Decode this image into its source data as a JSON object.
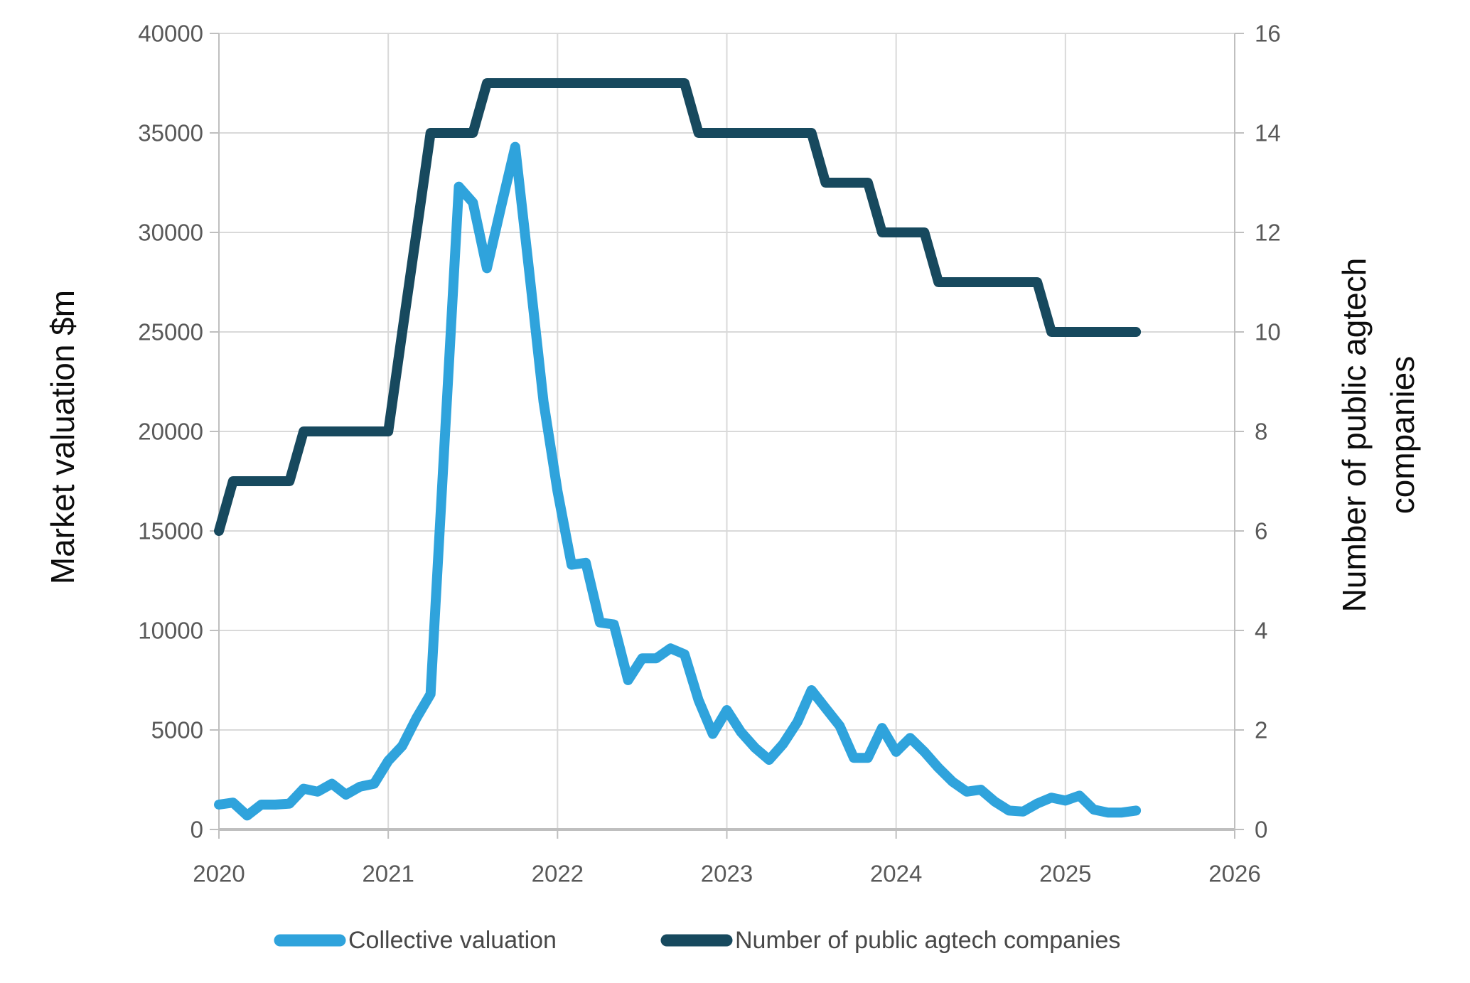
{
  "page": {
    "background": "#ffffff",
    "grid_color": "#d9d9d9",
    "axis_color": "#bfbfbf",
    "tick_label_color": "#595959"
  },
  "chart_data": {
    "type": "line",
    "title": "",
    "grid": "on",
    "x_axis": {
      "ticks": [
        2020,
        2021,
        2022,
        2023,
        2024,
        2025,
        2026
      ],
      "range": [
        2020,
        2026
      ]
    },
    "y_left": {
      "label": "Market valuation $m",
      "ticks": [
        0,
        5000,
        10000,
        15000,
        20000,
        25000,
        30000,
        35000,
        40000
      ],
      "range": [
        0,
        40000
      ]
    },
    "y_right": {
      "label": "Number of public agtech companies",
      "label_lines": [
        "Number of public agtech",
        "companies"
      ],
      "ticks": [
        0,
        2,
        4,
        6,
        8,
        10,
        12,
        14,
        16
      ],
      "range": [
        0,
        16
      ]
    },
    "x_monthly": [
      2020.0,
      2020.083,
      2020.167,
      2020.25,
      2020.333,
      2020.417,
      2020.5,
      2020.583,
      2020.667,
      2020.75,
      2020.833,
      2020.917,
      2021.0,
      2021.083,
      2021.167,
      2021.25,
      2021.333,
      2021.417,
      2021.5,
      2021.583,
      2021.667,
      2021.75,
      2021.833,
      2021.917,
      2022.0,
      2022.083,
      2022.167,
      2022.25,
      2022.333,
      2022.417,
      2022.5,
      2022.583,
      2022.667,
      2022.75,
      2022.833,
      2022.917,
      2023.0,
      2023.083,
      2023.167,
      2023.25,
      2023.333,
      2023.417,
      2023.5,
      2023.583,
      2023.667,
      2023.75,
      2023.833,
      2023.917,
      2024.0,
      2024.083,
      2024.167,
      2024.25,
      2024.333,
      2024.417,
      2024.5,
      2024.583,
      2024.667,
      2024.75,
      2024.833,
      2024.917,
      2025.0,
      2025.083,
      2025.167,
      2025.25,
      2025.333,
      2025.417
    ],
    "series": [
      {
        "name": "Collective valuation",
        "axis": "left",
        "color": "#2fa3dc",
        "stroke_width": 14,
        "values": [
          1250,
          1350,
          700,
          1250,
          1250,
          1300,
          2050,
          1900,
          2300,
          1750,
          2150,
          2300,
          3450,
          4200,
          5600,
          6800,
          19500,
          32300,
          31500,
          28200,
          31300,
          34300,
          28000,
          21500,
          17000,
          13300,
          13400,
          10400,
          10300,
          7500,
          8600,
          8600,
          9100,
          8800,
          6500,
          4800,
          6000,
          4900,
          4100,
          3500,
          4300,
          5400,
          7000,
          6100,
          5200,
          3600,
          3600,
          5100,
          3900,
          4600,
          3900,
          3100,
          2400,
          1900,
          2000,
          1400,
          950,
          900,
          1300,
          1600,
          1450,
          1700,
          1000,
          850,
          850,
          950
        ]
      },
      {
        "name": "Number of public agtech companies",
        "axis": "right",
        "color": "#17495e",
        "stroke_width": 14,
        "values": [
          6,
          7,
          7,
          7,
          7,
          7,
          8,
          8,
          8,
          8,
          8,
          8,
          8,
          10,
          12,
          14,
          14,
          14,
          14,
          15,
          15,
          15,
          15,
          15,
          15,
          15,
          15,
          15,
          15,
          15,
          15,
          15,
          15,
          15,
          14,
          14,
          14,
          14,
          14,
          14,
          14,
          14,
          14,
          13,
          13,
          13,
          13,
          12,
          12,
          12,
          12,
          11,
          11,
          11,
          11,
          11,
          11,
          11,
          11,
          10,
          10,
          10,
          10,
          10,
          10,
          10
        ]
      }
    ],
    "legend": {
      "position": "bottom",
      "items": [
        "Collective valuation",
        "Number of public agtech companies"
      ]
    }
  }
}
